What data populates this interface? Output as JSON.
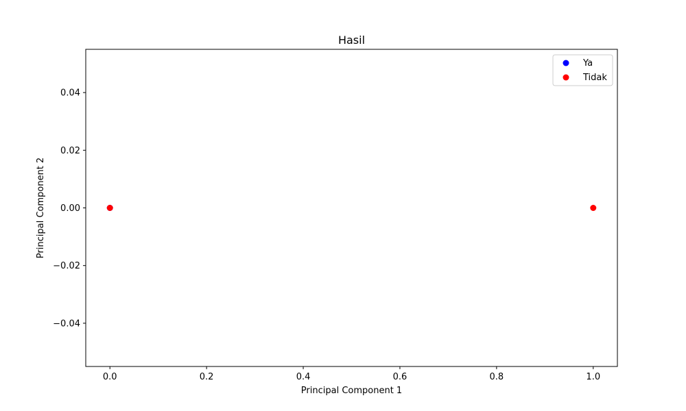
{
  "chart_data": {
    "type": "scatter",
    "title": "Hasil",
    "xlabel": "Principal Component 1",
    "ylabel": "Principal Component 2",
    "xlim": [
      -0.05,
      1.05
    ],
    "ylim": [
      -0.055,
      0.055
    ],
    "xticks": [
      0.0,
      0.2,
      0.4,
      0.6,
      0.8,
      1.0
    ],
    "xtick_labels": [
      "0.0",
      "0.2",
      "0.4",
      "0.6",
      "0.8",
      "1.0"
    ],
    "yticks": [
      -0.04,
      -0.02,
      0.0,
      0.02,
      0.04
    ],
    "ytick_labels": [
      "−0.04",
      "−0.02",
      "0.00",
      "0.02",
      "0.04"
    ],
    "grid": false,
    "legend_position": "top-right",
    "series": [
      {
        "name": "Ya",
        "color": "#0000ff",
        "points": [
          [
            0.0,
            0.0
          ]
        ]
      },
      {
        "name": "Tidak",
        "color": "#ff0000",
        "points": [
          [
            0.0,
            0.0
          ],
          [
            1.0,
            0.0
          ]
        ]
      }
    ]
  }
}
